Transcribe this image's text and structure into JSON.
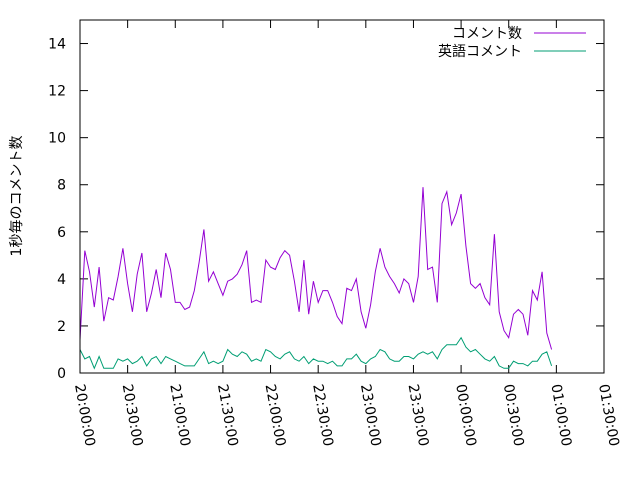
{
  "chart_data": {
    "type": "line",
    "title": "",
    "ylabel": "1秒毎のコメント数",
    "xlabel": "",
    "ylim": [
      0,
      15
    ],
    "xlim": [
      "20:00:00",
      "01:30:00"
    ],
    "yticks": [
      "0",
      "2",
      "4",
      "6",
      "8",
      "10",
      "12",
      "14"
    ],
    "xticks": [
      "20:00:00",
      "20:30:00",
      "21:00:00",
      "21:30:00",
      "22:00:00",
      "22:30:00",
      "23:00:00",
      "23:30:00",
      "00:00:00",
      "00:30:00",
      "01:00:00",
      "01:30:00"
    ],
    "legend_position": "top-right",
    "sample_interval": "00:03:00",
    "series": [
      {
        "name": "コメント数",
        "color": "#9400d3",
        "values": [
          1.4,
          5.2,
          4.3,
          2.8,
          4.5,
          2.2,
          3.2,
          3.1,
          4.1,
          5.3,
          3.8,
          2.6,
          4.2,
          5.1,
          2.6,
          3.4,
          4.4,
          3.2,
          5.1,
          4.4,
          3.0,
          3.0,
          2.7,
          2.8,
          3.5,
          4.7,
          6.1,
          3.9,
          4.3,
          3.8,
          3.3,
          3.9,
          4.0,
          4.2,
          4.6,
          5.2,
          3.0,
          3.1,
          3.0,
          4.8,
          4.5,
          4.4,
          4.9,
          5.2,
          5.0,
          3.9,
          2.6,
          4.8,
          2.5,
          3.9,
          3.0,
          3.5,
          3.5,
          3.0,
          2.4,
          2.1,
          3.6,
          3.5,
          4.0,
          2.6,
          1.9,
          2.9,
          4.3,
          5.3,
          4.5,
          4.1,
          3.8,
          3.4,
          4.0,
          3.8,
          3.0,
          4.1,
          7.9,
          4.4,
          4.5,
          3.0,
          7.2,
          7.7,
          6.3,
          6.8,
          7.6,
          5.4,
          3.8,
          3.6,
          3.8,
          3.2,
          2.9,
          5.9,
          2.6,
          1.8,
          1.5,
          2.5,
          2.7,
          2.5,
          1.6,
          3.5,
          3.1,
          4.3,
          1.7,
          1.0
        ]
      },
      {
        "name": "英語コメント",
        "color": "#009e73",
        "values": [
          1.0,
          0.6,
          0.7,
          0.2,
          0.7,
          0.2,
          0.2,
          0.2,
          0.6,
          0.5,
          0.6,
          0.4,
          0.5,
          0.7,
          0.3,
          0.6,
          0.7,
          0.4,
          0.7,
          0.6,
          0.5,
          0.4,
          0.3,
          0.3,
          0.3,
          0.6,
          0.9,
          0.4,
          0.5,
          0.4,
          0.5,
          1.0,
          0.8,
          0.7,
          0.9,
          0.8,
          0.5,
          0.6,
          0.5,
          1.0,
          0.9,
          0.7,
          0.6,
          0.8,
          0.9,
          0.6,
          0.5,
          0.7,
          0.4,
          0.6,
          0.5,
          0.5,
          0.4,
          0.5,
          0.3,
          0.3,
          0.6,
          0.6,
          0.8,
          0.5,
          0.4,
          0.6,
          0.7,
          1.0,
          0.9,
          0.6,
          0.5,
          0.5,
          0.7,
          0.7,
          0.6,
          0.8,
          0.9,
          0.8,
          0.9,
          0.6,
          1.0,
          1.2,
          1.2,
          1.2,
          1.5,
          1.1,
          0.9,
          1.0,
          0.8,
          0.6,
          0.5,
          0.7,
          0.3,
          0.2,
          0.2,
          0.5,
          0.4,
          0.4,
          0.3,
          0.5,
          0.5,
          0.8,
          0.9,
          0.3
        ]
      }
    ]
  }
}
